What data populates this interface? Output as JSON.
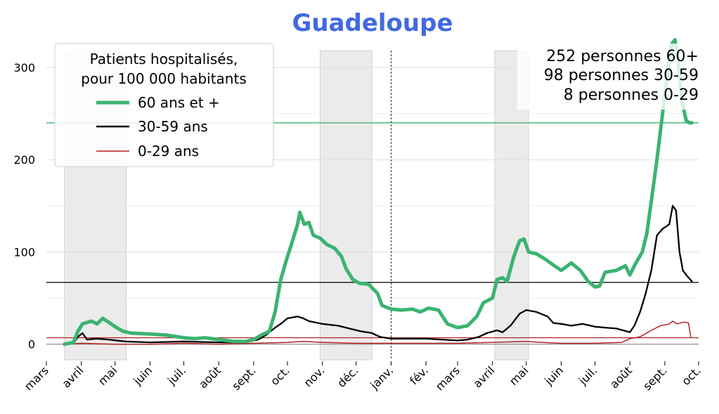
{
  "chart_data": {
    "type": "line",
    "title": "Guadeloupe",
    "title_color": "#4169e1",
    "xlabel": "",
    "ylabel": "",
    "x_start": "2020-03-01",
    "x_end": "2021-10-01",
    "ylim": [
      -17,
      335
    ],
    "yticks": [
      0,
      100,
      200,
      300
    ],
    "x_ticks": [
      {
        "date": "2020-03-01",
        "label": "mars"
      },
      {
        "date": "2020-04-01",
        "label": "avril"
      },
      {
        "date": "2020-05-01",
        "label": "mai"
      },
      {
        "date": "2020-06-01",
        "label": "juin"
      },
      {
        "date": "2020-07-01",
        "label": "juil."
      },
      {
        "date": "2020-08-01",
        "label": "août"
      },
      {
        "date": "2020-09-01",
        "label": "sept."
      },
      {
        "date": "2020-10-01",
        "label": "oct."
      },
      {
        "date": "2020-11-01",
        "label": "nov."
      },
      {
        "date": "2020-12-01",
        "label": "déc."
      },
      {
        "date": "2021-01-01",
        "label": "janv."
      },
      {
        "date": "2021-02-01",
        "label": "fév."
      },
      {
        "date": "2021-03-01",
        "label": "mars"
      },
      {
        "date": "2021-04-01",
        "label": "avril"
      },
      {
        "date": "2021-05-01",
        "label": "mai"
      },
      {
        "date": "2021-06-01",
        "label": "juin"
      },
      {
        "date": "2021-07-01",
        "label": "juil."
      },
      {
        "date": "2021-08-01",
        "label": "août"
      },
      {
        "date": "2021-09-01",
        "label": "sept."
      },
      {
        "date": "2021-10-01",
        "label": "oct."
      }
    ],
    "grid": "horizontal",
    "shaded_periods": [
      {
        "start": "2020-03-17",
        "end": "2020-05-11"
      },
      {
        "start": "2020-10-30",
        "end": "2020-12-15"
      },
      {
        "start": "2021-04-03",
        "end": "2021-05-03"
      }
    ],
    "vertical_marker": "2021-01-01",
    "legend": {
      "position": "top-left",
      "title_line1": "Patients hospitalisés,",
      "title_line2": "pour 100 000 habitants"
    },
    "annotations": {
      "line1": "252 personnes 60+",
      "line2": "98 personnes 30-59",
      "line3": "8 personnes 0-29"
    },
    "series": [
      {
        "name": "60 ans et +",
        "color": "#3cb371",
        "reference": 240,
        "points": [
          [
            "2020-03-17",
            0
          ],
          [
            "2020-03-25",
            2
          ],
          [
            "2020-03-29",
            14
          ],
          [
            "2020-04-02",
            22
          ],
          [
            "2020-04-10",
            25
          ],
          [
            "2020-04-15",
            22
          ],
          [
            "2020-04-20",
            28
          ],
          [
            "2020-04-25",
            24
          ],
          [
            "2020-05-01",
            19
          ],
          [
            "2020-05-08",
            14
          ],
          [
            "2020-05-15",
            12
          ],
          [
            "2020-06-01",
            11
          ],
          [
            "2020-06-15",
            10
          ],
          [
            "2020-07-01",
            7
          ],
          [
            "2020-07-10",
            6
          ],
          [
            "2020-07-20",
            7
          ],
          [
            "2020-08-01",
            5
          ],
          [
            "2020-08-15",
            3
          ],
          [
            "2020-08-25",
            3
          ],
          [
            "2020-09-01",
            5
          ],
          [
            "2020-09-08",
            10
          ],
          [
            "2020-09-15",
            14
          ],
          [
            "2020-09-20",
            35
          ],
          [
            "2020-09-25",
            70
          ],
          [
            "2020-10-01",
            95
          ],
          [
            "2020-10-05",
            110
          ],
          [
            "2020-10-10",
            130
          ],
          [
            "2020-10-12",
            143
          ],
          [
            "2020-10-16",
            130
          ],
          [
            "2020-10-20",
            132
          ],
          [
            "2020-10-24",
            118
          ],
          [
            "2020-10-30",
            115
          ],
          [
            "2020-11-05",
            108
          ],
          [
            "2020-11-12",
            104
          ],
          [
            "2020-11-18",
            95
          ],
          [
            "2020-11-22",
            82
          ],
          [
            "2020-11-28",
            70
          ],
          [
            "2020-12-04",
            66
          ],
          [
            "2020-12-12",
            65
          ],
          [
            "2020-12-20",
            55
          ],
          [
            "2020-12-24",
            42
          ],
          [
            "2021-01-01",
            38
          ],
          [
            "2021-01-10",
            37
          ],
          [
            "2021-01-20",
            38
          ],
          [
            "2021-01-27",
            35
          ],
          [
            "2021-02-03",
            39
          ],
          [
            "2021-02-12",
            37
          ],
          [
            "2021-02-20",
            22
          ],
          [
            "2021-03-01",
            18
          ],
          [
            "2021-03-10",
            20
          ],
          [
            "2021-03-18",
            30
          ],
          [
            "2021-03-24",
            45
          ],
          [
            "2021-04-01",
            50
          ],
          [
            "2021-04-05",
            70
          ],
          [
            "2021-04-10",
            72
          ],
          [
            "2021-04-14",
            68
          ],
          [
            "2021-04-20",
            95
          ],
          [
            "2021-04-25",
            112
          ],
          [
            "2021-04-29",
            114
          ],
          [
            "2021-05-03",
            100
          ],
          [
            "2021-05-10",
            98
          ],
          [
            "2021-05-18",
            92
          ],
          [
            "2021-05-26",
            85
          ],
          [
            "2021-06-01",
            80
          ],
          [
            "2021-06-10",
            88
          ],
          [
            "2021-06-18",
            80
          ],
          [
            "2021-06-25",
            68
          ],
          [
            "2021-07-01",
            62
          ],
          [
            "2021-07-05",
            63
          ],
          [
            "2021-07-10",
            78
          ],
          [
            "2021-07-20",
            80
          ],
          [
            "2021-07-28",
            85
          ],
          [
            "2021-08-01",
            75
          ],
          [
            "2021-08-05",
            85
          ],
          [
            "2021-08-12",
            100
          ],
          [
            "2021-08-16",
            120
          ],
          [
            "2021-08-20",
            155
          ],
          [
            "2021-08-25",
            200
          ],
          [
            "2021-08-30",
            250
          ],
          [
            "2021-09-03",
            290
          ],
          [
            "2021-09-07",
            325
          ],
          [
            "2021-09-10",
            330
          ],
          [
            "2021-09-13",
            305
          ],
          [
            "2021-09-16",
            265
          ],
          [
            "2021-09-20",
            242
          ],
          [
            "2021-09-23",
            240
          ],
          [
            "2021-09-25",
            240
          ]
        ]
      },
      {
        "name": "30-59 ans",
        "color": "#000000",
        "reference": 67,
        "points": [
          [
            "2020-03-17",
            0
          ],
          [
            "2020-03-25",
            1
          ],
          [
            "2020-03-29",
            8
          ],
          [
            "2020-04-02",
            12
          ],
          [
            "2020-04-06",
            5
          ],
          [
            "2020-04-15",
            6
          ],
          [
            "2020-04-25",
            5
          ],
          [
            "2020-05-10",
            3
          ],
          [
            "2020-06-01",
            2
          ],
          [
            "2020-07-01",
            3
          ],
          [
            "2020-08-01",
            2
          ],
          [
            "2020-08-25",
            2
          ],
          [
            "2020-09-05",
            5
          ],
          [
            "2020-09-12",
            10
          ],
          [
            "2020-09-20",
            18
          ],
          [
            "2020-09-25",
            22
          ],
          [
            "2020-10-01",
            28
          ],
          [
            "2020-10-10",
            30
          ],
          [
            "2020-10-15",
            28
          ],
          [
            "2020-10-20",
            25
          ],
          [
            "2020-11-01",
            22
          ],
          [
            "2020-11-15",
            20
          ],
          [
            "2020-11-25",
            17
          ],
          [
            "2020-12-05",
            14
          ],
          [
            "2020-12-15",
            12
          ],
          [
            "2020-12-22",
            8
          ],
          [
            "2021-01-01",
            6
          ],
          [
            "2021-01-15",
            6
          ],
          [
            "2021-02-01",
            6
          ],
          [
            "2021-02-15",
            5
          ],
          [
            "2021-03-01",
            4
          ],
          [
            "2021-03-10",
            5
          ],
          [
            "2021-03-20",
            8
          ],
          [
            "2021-03-27",
            12
          ],
          [
            "2021-04-05",
            15
          ],
          [
            "2021-04-10",
            13
          ],
          [
            "2021-04-17",
            20
          ],
          [
            "2021-04-25",
            33
          ],
          [
            "2021-05-01",
            37
          ],
          [
            "2021-05-10",
            35
          ],
          [
            "2021-05-20",
            30
          ],
          [
            "2021-05-25",
            23
          ],
          [
            "2021-06-01",
            22
          ],
          [
            "2021-06-10",
            20
          ],
          [
            "2021-06-20",
            22
          ],
          [
            "2021-07-01",
            19
          ],
          [
            "2021-07-10",
            18
          ],
          [
            "2021-07-20",
            17
          ],
          [
            "2021-08-01",
            13
          ],
          [
            "2021-08-05",
            20
          ],
          [
            "2021-08-10",
            35
          ],
          [
            "2021-08-15",
            55
          ],
          [
            "2021-08-20",
            80
          ],
          [
            "2021-08-25",
            118
          ],
          [
            "2021-08-30",
            125
          ],
          [
            "2021-09-05",
            130
          ],
          [
            "2021-09-08",
            150
          ],
          [
            "2021-09-11",
            145
          ],
          [
            "2021-09-14",
            100
          ],
          [
            "2021-09-17",
            80
          ],
          [
            "2021-09-20",
            75
          ],
          [
            "2021-09-25",
            68
          ]
        ]
      },
      {
        "name": "0-29 ans",
        "color": "#b22222",
        "reference": 7,
        "points": [
          [
            "2020-03-17",
            0
          ],
          [
            "2020-04-01",
            1
          ],
          [
            "2020-05-01",
            0
          ],
          [
            "2020-06-01",
            0
          ],
          [
            "2020-07-01",
            1
          ],
          [
            "2020-08-01",
            0
          ],
          [
            "2020-09-01",
            1
          ],
          [
            "2020-10-01",
            2
          ],
          [
            "2020-10-15",
            3
          ],
          [
            "2020-11-01",
            2
          ],
          [
            "2020-12-01",
            1
          ],
          [
            "2021-01-01",
            1
          ],
          [
            "2021-02-01",
            1
          ],
          [
            "2021-03-01",
            1
          ],
          [
            "2021-04-01",
            2
          ],
          [
            "2021-05-01",
            3
          ],
          [
            "2021-05-15",
            2
          ],
          [
            "2021-06-01",
            1
          ],
          [
            "2021-07-01",
            1
          ],
          [
            "2021-07-25",
            2
          ],
          [
            "2021-08-01",
            6
          ],
          [
            "2021-08-10",
            8
          ],
          [
            "2021-08-20",
            15
          ],
          [
            "2021-08-28",
            20
          ],
          [
            "2021-09-05",
            22
          ],
          [
            "2021-09-08",
            25
          ],
          [
            "2021-09-12",
            22
          ],
          [
            "2021-09-18",
            24
          ],
          [
            "2021-09-22",
            23
          ],
          [
            "2021-09-24",
            8
          ]
        ]
      }
    ]
  }
}
